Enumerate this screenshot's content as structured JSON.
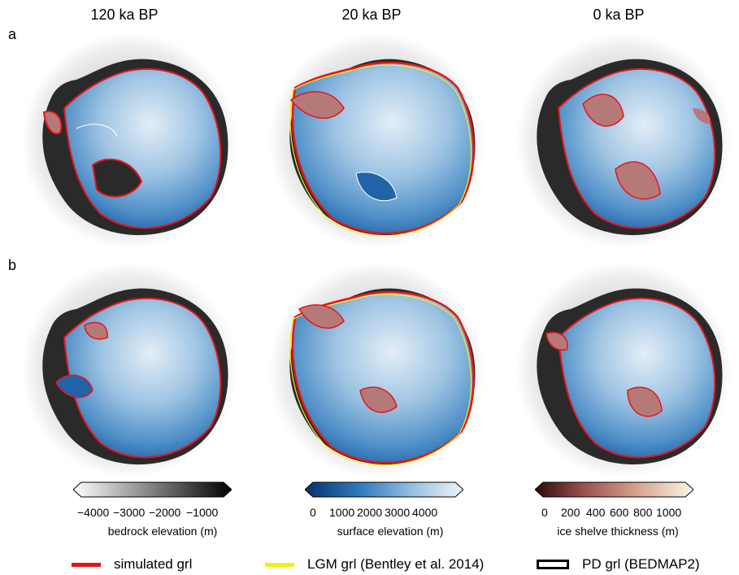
{
  "columns": [
    "120 ka BP",
    "20 ka BP",
    "0 ka BP"
  ],
  "rows": [
    "a",
    "b"
  ],
  "colorbars": [
    {
      "ticks": [
        "−4000",
        "−3000",
        "−2000",
        "−1000"
      ],
      "label": "bedrock elevation (m)"
    },
    {
      "ticks": [
        "0",
        "1000",
        "2000",
        "3000",
        "4000"
      ],
      "label": "surface elevation (m)"
    },
    {
      "ticks": [
        "0",
        "200",
        "400",
        "600",
        "800",
        "1000"
      ],
      "label": "ice shelve thickness (m)"
    }
  ],
  "legend": [
    {
      "label": "simulated grl",
      "color": "#e8141b"
    },
    {
      "label": "LGM grl (Bentley et al. 2014)",
      "color": "#f5ef10"
    },
    {
      "label": "PD grl (BEDMAP2)",
      "color": "#ffffff"
    }
  ],
  "colors": {
    "ice_sheet": "#6fa6d4",
    "ice_shelf": "#b57a77",
    "bedrock": "#2a2a2a"
  }
}
